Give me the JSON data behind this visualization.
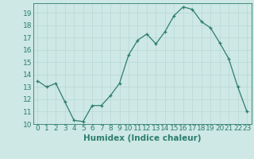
{
  "x": [
    0,
    1,
    2,
    3,
    4,
    5,
    6,
    7,
    8,
    9,
    10,
    11,
    12,
    13,
    14,
    15,
    16,
    17,
    18,
    19,
    20,
    21,
    22,
    23
  ],
  "y": [
    13.5,
    13.0,
    13.3,
    11.8,
    10.3,
    10.2,
    11.5,
    11.5,
    12.3,
    13.3,
    15.6,
    16.8,
    17.3,
    16.5,
    17.5,
    18.8,
    19.5,
    19.3,
    18.3,
    17.8,
    16.6,
    15.3,
    13.0,
    11.0
  ],
  "line_color": "#2e7d6e",
  "marker": "+",
  "marker_color": "#2e7d6e",
  "bg_color": "#cde8e5",
  "grid_color": "#b8d8d4",
  "xlabel": "Humidex (Indice chaleur)",
  "xlim": [
    -0.5,
    23.5
  ],
  "ylim": [
    10,
    19.8
  ],
  "yticks": [
    10,
    11,
    12,
    13,
    14,
    15,
    16,
    17,
    18,
    19
  ],
  "xticks": [
    0,
    1,
    2,
    3,
    4,
    5,
    6,
    7,
    8,
    9,
    10,
    11,
    12,
    13,
    14,
    15,
    16,
    17,
    18,
    19,
    20,
    21,
    22,
    23
  ],
  "tick_fontsize": 6.5,
  "xlabel_fontsize": 7.5,
  "axis_color": "#2e7d6e",
  "spine_color": "#2e7d6e"
}
